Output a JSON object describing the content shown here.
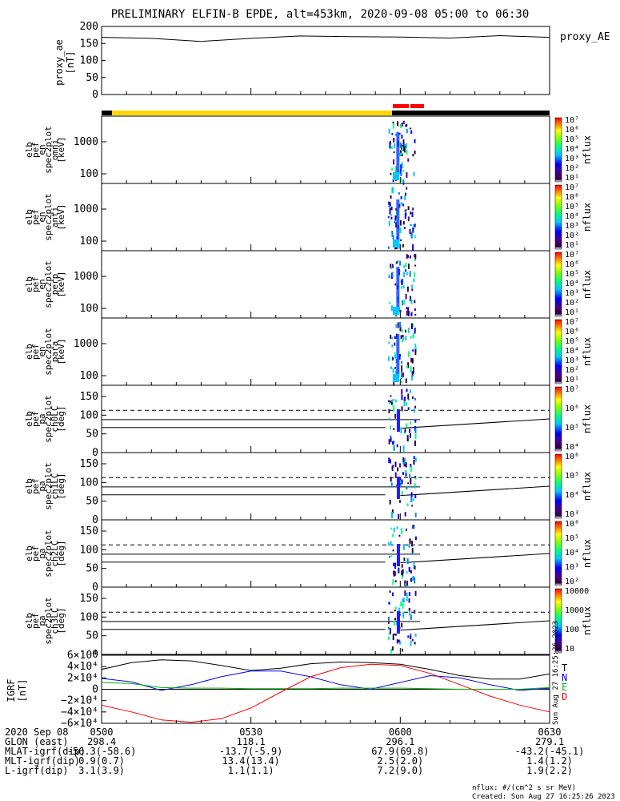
{
  "title": "PRELIMINARY ELFIN-B EPDE, alt=453km, 2020-09-08 05:00 to 06:30",
  "colors": {
    "yellow_bar": "#ffd700",
    "red_bar": "#ff0000",
    "black_bar": "#000000"
  },
  "chart_data": [
    {
      "type": "line",
      "panel": "proxy_ae",
      "legend": "proxy_AE",
      "ylabel": [
        "proxy_ae",
        "[nT]"
      ],
      "ylim": [
        0,
        200
      ],
      "yticks": [
        "200",
        "150",
        "100",
        "50",
        "0"
      ],
      "x_minutes": [
        0,
        10,
        20,
        30,
        40,
        50,
        60,
        70,
        80,
        90
      ],
      "values": [
        168,
        165,
        156,
        165,
        172,
        170,
        169,
        166,
        173,
        168
      ]
    },
    {
      "type": "heatmap",
      "panel": "en_omni",
      "ylabel": [
        "elb",
        "pef",
        "en",
        "spec2plot",
        "omni",
        "[keV]"
      ],
      "yticks": [
        "1000",
        "100"
      ],
      "colorbar_label": "nflux",
      "colorbar_ticks": [
        "10⁷",
        "10⁶",
        "10⁵",
        "10⁴",
        "10³",
        "10²",
        "10¹"
      ]
    },
    {
      "type": "heatmap",
      "panel": "en_anti",
      "ylabel": [
        "elb",
        "pef",
        "en",
        "spec2plot",
        "anti",
        "[keV]"
      ],
      "yticks": [
        "1000",
        "100"
      ],
      "colorbar_label": "nflux",
      "colorbar_ticks": [
        "10⁷",
        "10⁶",
        "10⁵",
        "10⁴",
        "10³",
        "10²",
        "10¹"
      ]
    },
    {
      "type": "heatmap",
      "panel": "en_perp",
      "ylabel": [
        "elb",
        "pef",
        "en",
        "spec2plot",
        "perp",
        "[keV]"
      ],
      "yticks": [
        "1000",
        "100"
      ],
      "colorbar_label": "nflux",
      "colorbar_ticks": [
        "10⁷",
        "10⁶",
        "10⁵",
        "10⁴",
        "10³",
        "10²",
        "10¹"
      ]
    },
    {
      "type": "heatmap",
      "panel": "en_para",
      "ylabel": [
        "elb",
        "pef",
        "en",
        "spec2plot",
        "para",
        "[keV]"
      ],
      "yticks": [
        "1000",
        "100"
      ],
      "colorbar_label": "nflux",
      "colorbar_ticks": [
        "10⁷",
        "10⁶",
        "10⁵",
        "10⁴",
        "10³",
        "10²",
        "10¹"
      ]
    },
    {
      "type": "heatmap",
      "panel": "pa_ch0",
      "ylabel": [
        "elb",
        "pef",
        "pa",
        "spec2plot",
        "ch0LC",
        "[deg]"
      ],
      "yticks": [
        "150",
        "100",
        "50",
        "0"
      ],
      "colorbar_label": "nflux",
      "colorbar_ticks": [
        "10⁷",
        "10⁶",
        "10⁵",
        "10⁴"
      ]
    },
    {
      "type": "heatmap",
      "panel": "pa_ch1",
      "ylabel": [
        "elb",
        "pef",
        "pa",
        "spec2plot",
        "ch1LC",
        "[deg]"
      ],
      "yticks": [
        "150",
        "100",
        "50",
        "0"
      ],
      "colorbar_label": "nflux",
      "colorbar_ticks": [
        "10⁶",
        "10⁵",
        "10⁴",
        "10³"
      ]
    },
    {
      "type": "heatmap",
      "panel": "pa_ch2",
      "ylabel": [
        "elb",
        "pef",
        "pa",
        "spec2plot",
        "ch2LC",
        "[deg]"
      ],
      "yticks": [
        "150",
        "100",
        "50",
        "0"
      ],
      "colorbar_label": "nflux",
      "colorbar_ticks": [
        "10⁶",
        "10⁵",
        "10⁴",
        "10³",
        "10²"
      ]
    },
    {
      "type": "heatmap",
      "panel": "pa_ch3",
      "ylabel": [
        "elb",
        "pef",
        "pa",
        "spec2plot",
        "ch3LC",
        "[deg]"
      ],
      "yticks": [
        "150",
        "100",
        "50",
        "0"
      ],
      "colorbar_label": "nflux",
      "colorbar_ticks": [
        "10000",
        "1000",
        "100",
        "10"
      ]
    },
    {
      "type": "line",
      "panel": "igrf",
      "ylabel": [
        "IGRF",
        "[nT]"
      ],
      "yticks": [
        "6×10⁴",
        "4×10⁴",
        "2×10⁴",
        "0",
        "−2×10⁴",
        "−4×10⁴",
        "−6×10⁴"
      ],
      "ylim": [
        -60000,
        60000
      ],
      "x_minutes": [
        0,
        6,
        12,
        18,
        24,
        30,
        36,
        42,
        48,
        54,
        60,
        66,
        72,
        78,
        84,
        90
      ],
      "series": [
        {
          "name": "T",
          "color": "#000000",
          "values": [
            35000,
            47000,
            52000,
            50000,
            42000,
            33000,
            37000,
            45000,
            48000,
            47000,
            44000,
            35000,
            24000,
            18000,
            18000,
            27000
          ]
        },
        {
          "name": "N",
          "color": "#0000ff",
          "values": [
            19000,
            13000,
            -2000,
            8000,
            22000,
            32000,
            32000,
            22000,
            8000,
            0,
            12000,
            24000,
            20000,
            8000,
            -2000,
            2000
          ]
        },
        {
          "name": "E",
          "color": "#00b000",
          "values": [
            12000,
            10000,
            3000,
            2000,
            2000,
            1000,
            1000,
            1000,
            2000,
            2000,
            2000,
            1000,
            0,
            0,
            0,
            3000
          ]
        },
        {
          "name": "D",
          "color": "#ff0000",
          "values": [
            -28000,
            -40000,
            -54000,
            -58000,
            -52000,
            -33000,
            -5000,
            22000,
            38000,
            44000,
            42000,
            28000,
            8000,
            -12000,
            -28000,
            -40000
          ]
        }
      ]
    }
  ],
  "xaxis": {
    "ticks": [
      "0500",
      "0530",
      "0600",
      "0630"
    ]
  },
  "footer": {
    "rows": [
      {
        "label": "2020 Sep 08",
        "v": [
          "0500",
          "0530",
          "0600",
          "0630"
        ]
      },
      {
        "label": "GLON (east)",
        "v": [
          "298.4",
          "118.1",
          "296.1",
          "279.1"
        ]
      },
      {
        "label": "MLAT-igrf(dip)",
        "v": [
          "-56.3(-58.6)",
          "-13.7(-5.9)",
          "67.9(69.8)",
          "-43.2(-45.1)"
        ]
      },
      {
        "label": "MLT-igrf(dip)",
        "v": [
          "0.9(0.7)",
          "13.4(13.4)",
          "2.5(2.0)",
          "1.4(1.2)"
        ]
      },
      {
        "label": "L-igrf(dip)",
        "v": [
          "3.1(3.9)",
          "1.1(1.1)",
          "7.2(9.0)",
          "1.9(2.2)"
        ]
      }
    ],
    "units": "nflux: #/(cm^2 s sr MeV)",
    "created": "Created: Sun Aug 27 16:25:26 2023",
    "side_stamp": "Sun Aug 27 16:25:26 2023"
  }
}
